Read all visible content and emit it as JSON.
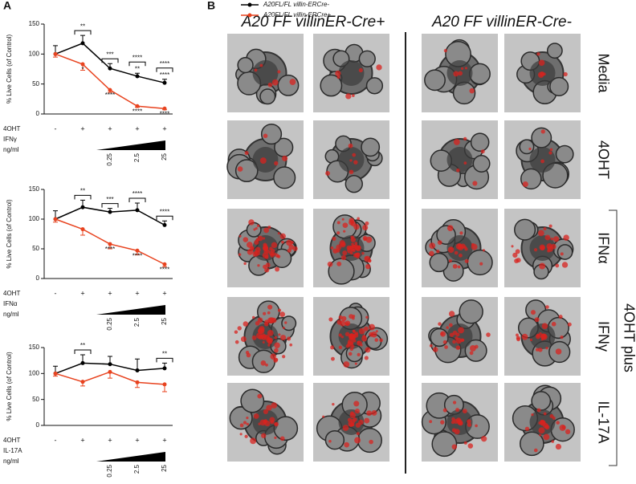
{
  "panel_labels": [
    "A",
    "B"
  ],
  "chart_data": [
    {
      "type": "line",
      "ylabel": "% Live Cells (of Control)",
      "ylim": [
        0,
        150
      ],
      "yticks": [
        0,
        50,
        100,
        150
      ],
      "treatment": {
        "label": "4OHT",
        "values": [
          "-",
          "+",
          "+",
          "+",
          "+"
        ]
      },
      "cytokine": "IFNγ",
      "unit": "ng/ml",
      "doses": [
        "0.25",
        "2.5",
        "25"
      ],
      "bracket_labels": [
        null,
        "**",
        "***",
        "****",
        "****"
      ],
      "series": [
        {
          "name": "A20FL/FL villin-ERCre-",
          "color": "#000000",
          "values": [
            100,
            118,
            76,
            63,
            52
          ],
          "errors": [
            14,
            13,
            8,
            5,
            6
          ],
          "labels": [
            null,
            null,
            null,
            "**",
            "****"
          ]
        },
        {
          "name": "A20FL/FL villin-ERCre+",
          "color": "#e8431f",
          "values": [
            100,
            83,
            40,
            13,
            9
          ],
          "errors": [
            5,
            10,
            4,
            2,
            2
          ],
          "labels": [
            null,
            "*",
            "****",
            "****",
            "****"
          ]
        }
      ]
    },
    {
      "type": "line",
      "ylabel": "% Live Cells (of Control)",
      "ylim": [
        0,
        150
      ],
      "yticks": [
        0,
        50,
        100,
        150
      ],
      "treatment": {
        "label": "4OHT",
        "values": [
          "-",
          "+",
          "+",
          "+",
          "+"
        ]
      },
      "cytokine": "IFNα",
      "unit": "ng/ml",
      "doses": [
        "0.25",
        "2.5",
        "25"
      ],
      "bracket_labels": [
        null,
        "**",
        "***",
        "****",
        "****"
      ],
      "series": [
        {
          "color": "#000000",
          "values": [
            100,
            120,
            112,
            115,
            90
          ],
          "errors": [
            14,
            12,
            6,
            12,
            7
          ],
          "labels": [
            null,
            null,
            null,
            null,
            null
          ]
        },
        {
          "color": "#e8431f",
          "values": [
            100,
            83,
            58,
            47,
            24
          ],
          "errors": [
            5,
            10,
            8,
            7,
            4
          ],
          "labels": [
            null,
            null,
            "****",
            "****",
            "****"
          ]
        }
      ]
    },
    {
      "type": "line",
      "ylabel": "% Live Cells (of Control)",
      "ylim": [
        0,
        150
      ],
      "yticks": [
        0,
        50,
        100,
        150
      ],
      "treatment": {
        "label": "4OHT",
        "values": [
          "-",
          "+",
          "+",
          "+",
          "+"
        ]
      },
      "cytokine": "IL-17A",
      "unit": "ng/ml",
      "doses": [
        "0.25",
        "2.5",
        "25"
      ],
      "bracket_labels": [
        null,
        "**",
        null,
        null,
        "**"
      ],
      "series": [
        {
          "color": "#000000",
          "values": [
            100,
            120,
            118,
            106,
            110
          ],
          "errors": [
            14,
            16,
            15,
            22,
            10
          ],
          "labels": [
            null,
            null,
            null,
            null,
            null
          ]
        },
        {
          "color": "#e8431f",
          "values": [
            100,
            84,
            103,
            83,
            79
          ],
          "errors": [
            5,
            8,
            12,
            10,
            14
          ],
          "labels": [
            null,
            null,
            null,
            null,
            null
          ]
        }
      ]
    }
  ],
  "panel_b": {
    "columns": [
      "A20 FF villinER-Cre+",
      "A20 FF villinER-Cre-"
    ],
    "rows": [
      "Media",
      "4OHT",
      "IFNα",
      "IFNγ",
      "IL-17A"
    ],
    "group_label": "4OHT plus"
  }
}
